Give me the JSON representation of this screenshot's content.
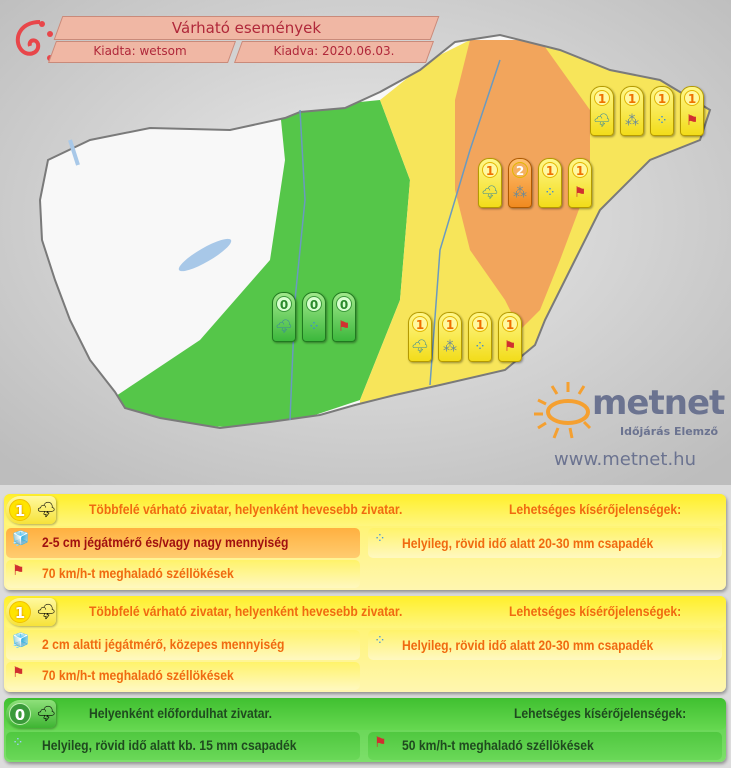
{
  "header": {
    "title": "Várható események",
    "issued_by": "Kiadta: wetsom",
    "issued_on": "Kiadva: 2020.06.03."
  },
  "colors": {
    "level0": "#4cc63c",
    "level1": "#fbe94a",
    "level2": "#f4a45a",
    "header": "#f0b7a4"
  },
  "map_icons": [
    {
      "region": "northeast",
      "badges": [
        {
          "level": "1",
          "icon": "storm-icon"
        },
        {
          "level": "1",
          "icon": "hail-icon"
        },
        {
          "level": "1",
          "icon": "rain-icon"
        },
        {
          "level": "1",
          "icon": "wind-icon"
        }
      ]
    },
    {
      "region": "east",
      "badges": [
        {
          "level": "1",
          "icon": "storm-icon"
        },
        {
          "level": "2",
          "icon": "hail-icon"
        },
        {
          "level": "1",
          "icon": "rain-icon"
        },
        {
          "level": "1",
          "icon": "wind-icon"
        }
      ]
    },
    {
      "region": "southeast",
      "badges": [
        {
          "level": "1",
          "icon": "storm-icon"
        },
        {
          "level": "1",
          "icon": "hail-icon"
        },
        {
          "level": "1",
          "icon": "rain-icon"
        },
        {
          "level": "1",
          "icon": "wind-icon"
        }
      ]
    },
    {
      "region": "center",
      "badges": [
        {
          "level": "0",
          "icon": "storm-icon"
        },
        {
          "level": "0",
          "icon": "rain-icon"
        },
        {
          "level": "0",
          "icon": "wind-icon"
        }
      ]
    }
  ],
  "logo": {
    "brand": "metnet",
    "tagline": "Időjárás Elemző",
    "url": "www.metnet.hu"
  },
  "legend": [
    {
      "level": "1",
      "headline": "Többfelé várható zivatar, helyenként hevesebb zivatar.",
      "side_label": "Lehetséges kísérőjelenségek:",
      "hail": "2-5 cm jégátmérő és/vagy nagy mennyiség",
      "rain": "Helyileg, rövid idő alatt 20-30 mm csapadék",
      "wind": "70 km/h-t meghaladó széllökések"
    },
    {
      "level": "1",
      "headline": "Többfelé várható zivatar, helyenként hevesebb zivatar.",
      "side_label": "Lehetséges kísérőjelenségek:",
      "hail": "2 cm alatti jégátmérő, közepes mennyiség",
      "rain": "Helyileg, rövid idő alatt 20-30 mm csapadék",
      "wind": "70 km/h-t meghaladó széllökések"
    },
    {
      "level": "0",
      "headline": "Helyenként előfordulhat zivatar.",
      "side_label": "Lehetséges kísérőjelenségek:",
      "rain": "Helyileg, rövid idő alatt kb. 15 mm csapadék",
      "wind": "50 km/h-t meghaladó széllökések"
    }
  ]
}
